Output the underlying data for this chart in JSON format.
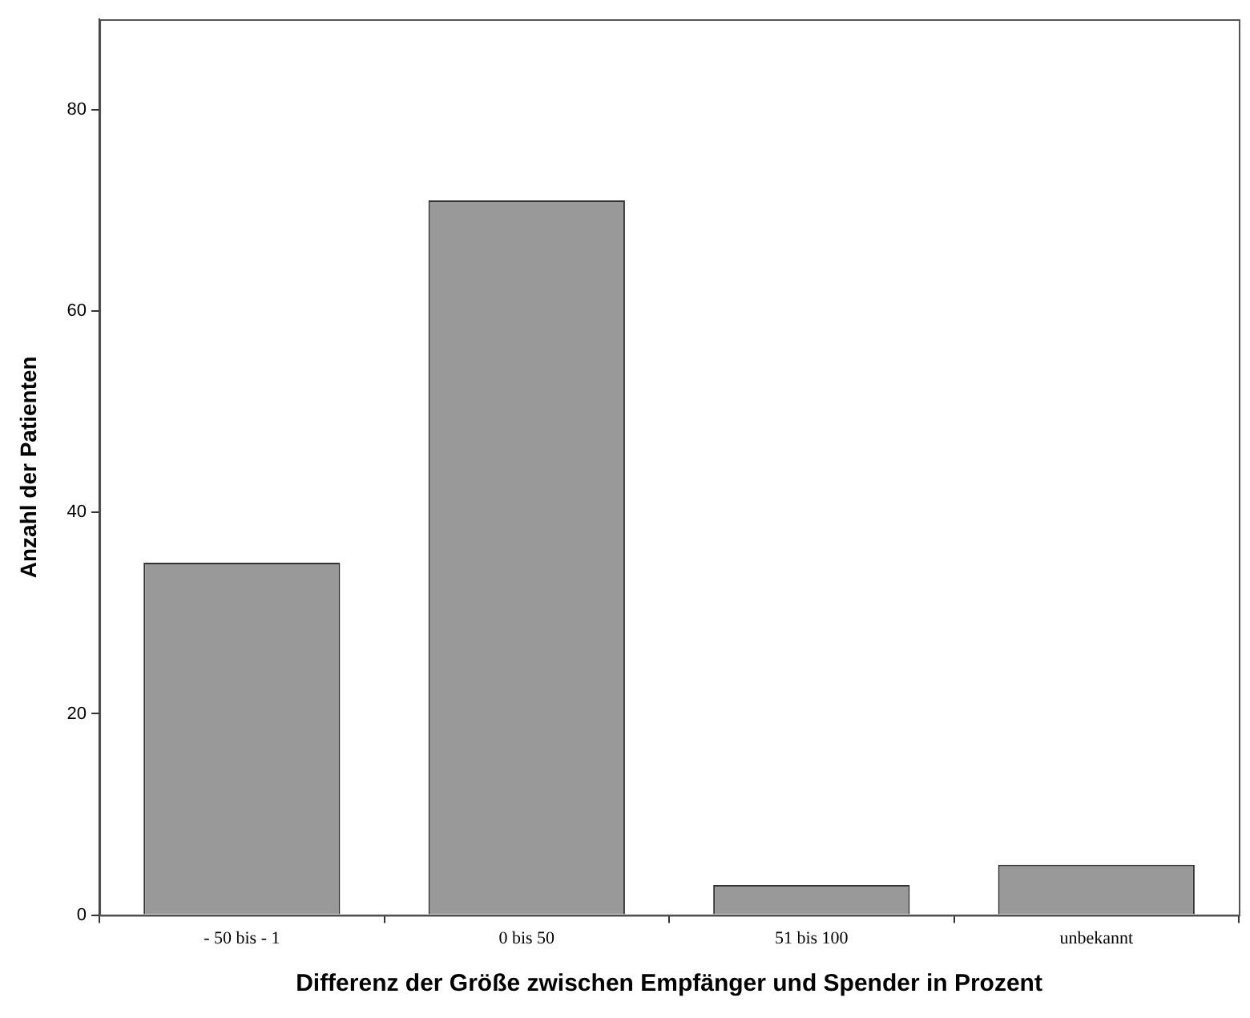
{
  "chart_data": {
    "type": "bar",
    "xlabel": "Differenz der Größe zwischen Empfänger und Spender in Prozent",
    "ylabel": "Anzahl der Patienten",
    "categories": [
      "- 50 bis - 1",
      "0 bis 50",
      "51 bis 100",
      "unbekannt"
    ],
    "values": [
      35,
      71,
      3,
      5
    ],
    "color": "#999999",
    "ylim": [
      0,
      89
    ],
    "yticks": [
      0,
      20,
      40,
      60,
      80
    ],
    "grid": false,
    "legend": false
  }
}
